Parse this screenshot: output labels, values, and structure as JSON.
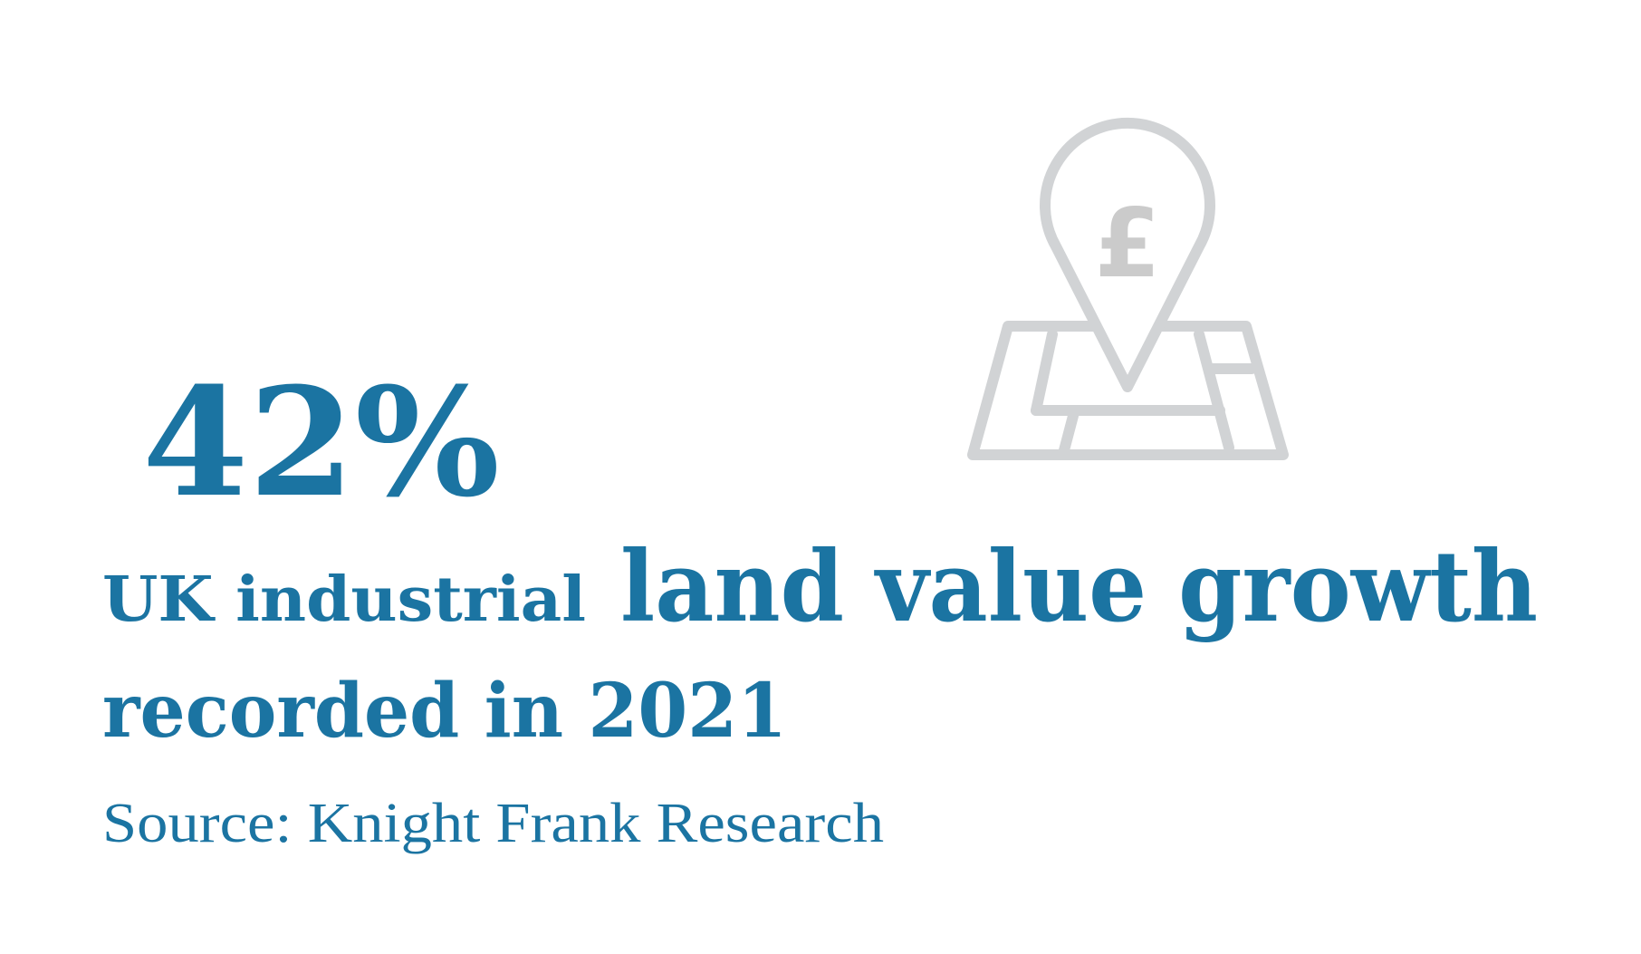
{
  "stat": "42%",
  "headline": {
    "part1": "UK industrial",
    "part2": "land value growth",
    "line2": "recorded in 2021"
  },
  "source": "Source: Knight Frank Research",
  "icon": {
    "symbol": "£"
  }
}
